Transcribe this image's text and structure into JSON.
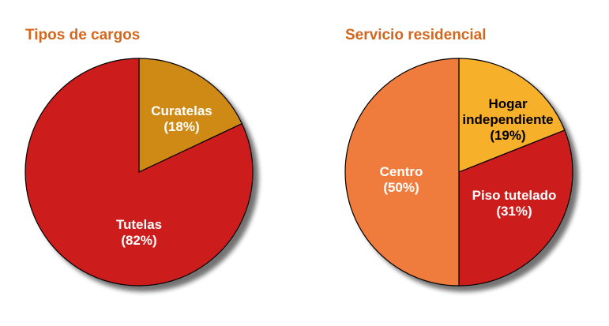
{
  "chart_data": [
    {
      "type": "pie",
      "title": "Tipos de cargos",
      "slices": [
        {
          "label": "Curatelas",
          "pct_label": "(18%)",
          "value": 18,
          "color": "#cf8a14",
          "text_color": "#ffffff"
        },
        {
          "label": "Tutelas",
          "pct_label": "(82%)",
          "value": 82,
          "color": "#cc1b1b",
          "text_color": "#ffffff"
        }
      ]
    },
    {
      "type": "pie",
      "title": "Servicio residencial",
      "slices": [
        {
          "label": "Hogar\nindependiente",
          "pct_label": "(19%)",
          "value": 19,
          "color": "#f6b02c",
          "text_color": "#000000"
        },
        {
          "label": "Piso tutelado",
          "pct_label": "(31%)",
          "value": 31,
          "color": "#cc1b1b",
          "text_color": "#ffffff"
        },
        {
          "label": "Centro",
          "pct_label": "(50%)",
          "value": 50,
          "color": "#ef7b3c",
          "text_color": "#ffffff"
        }
      ]
    }
  ]
}
